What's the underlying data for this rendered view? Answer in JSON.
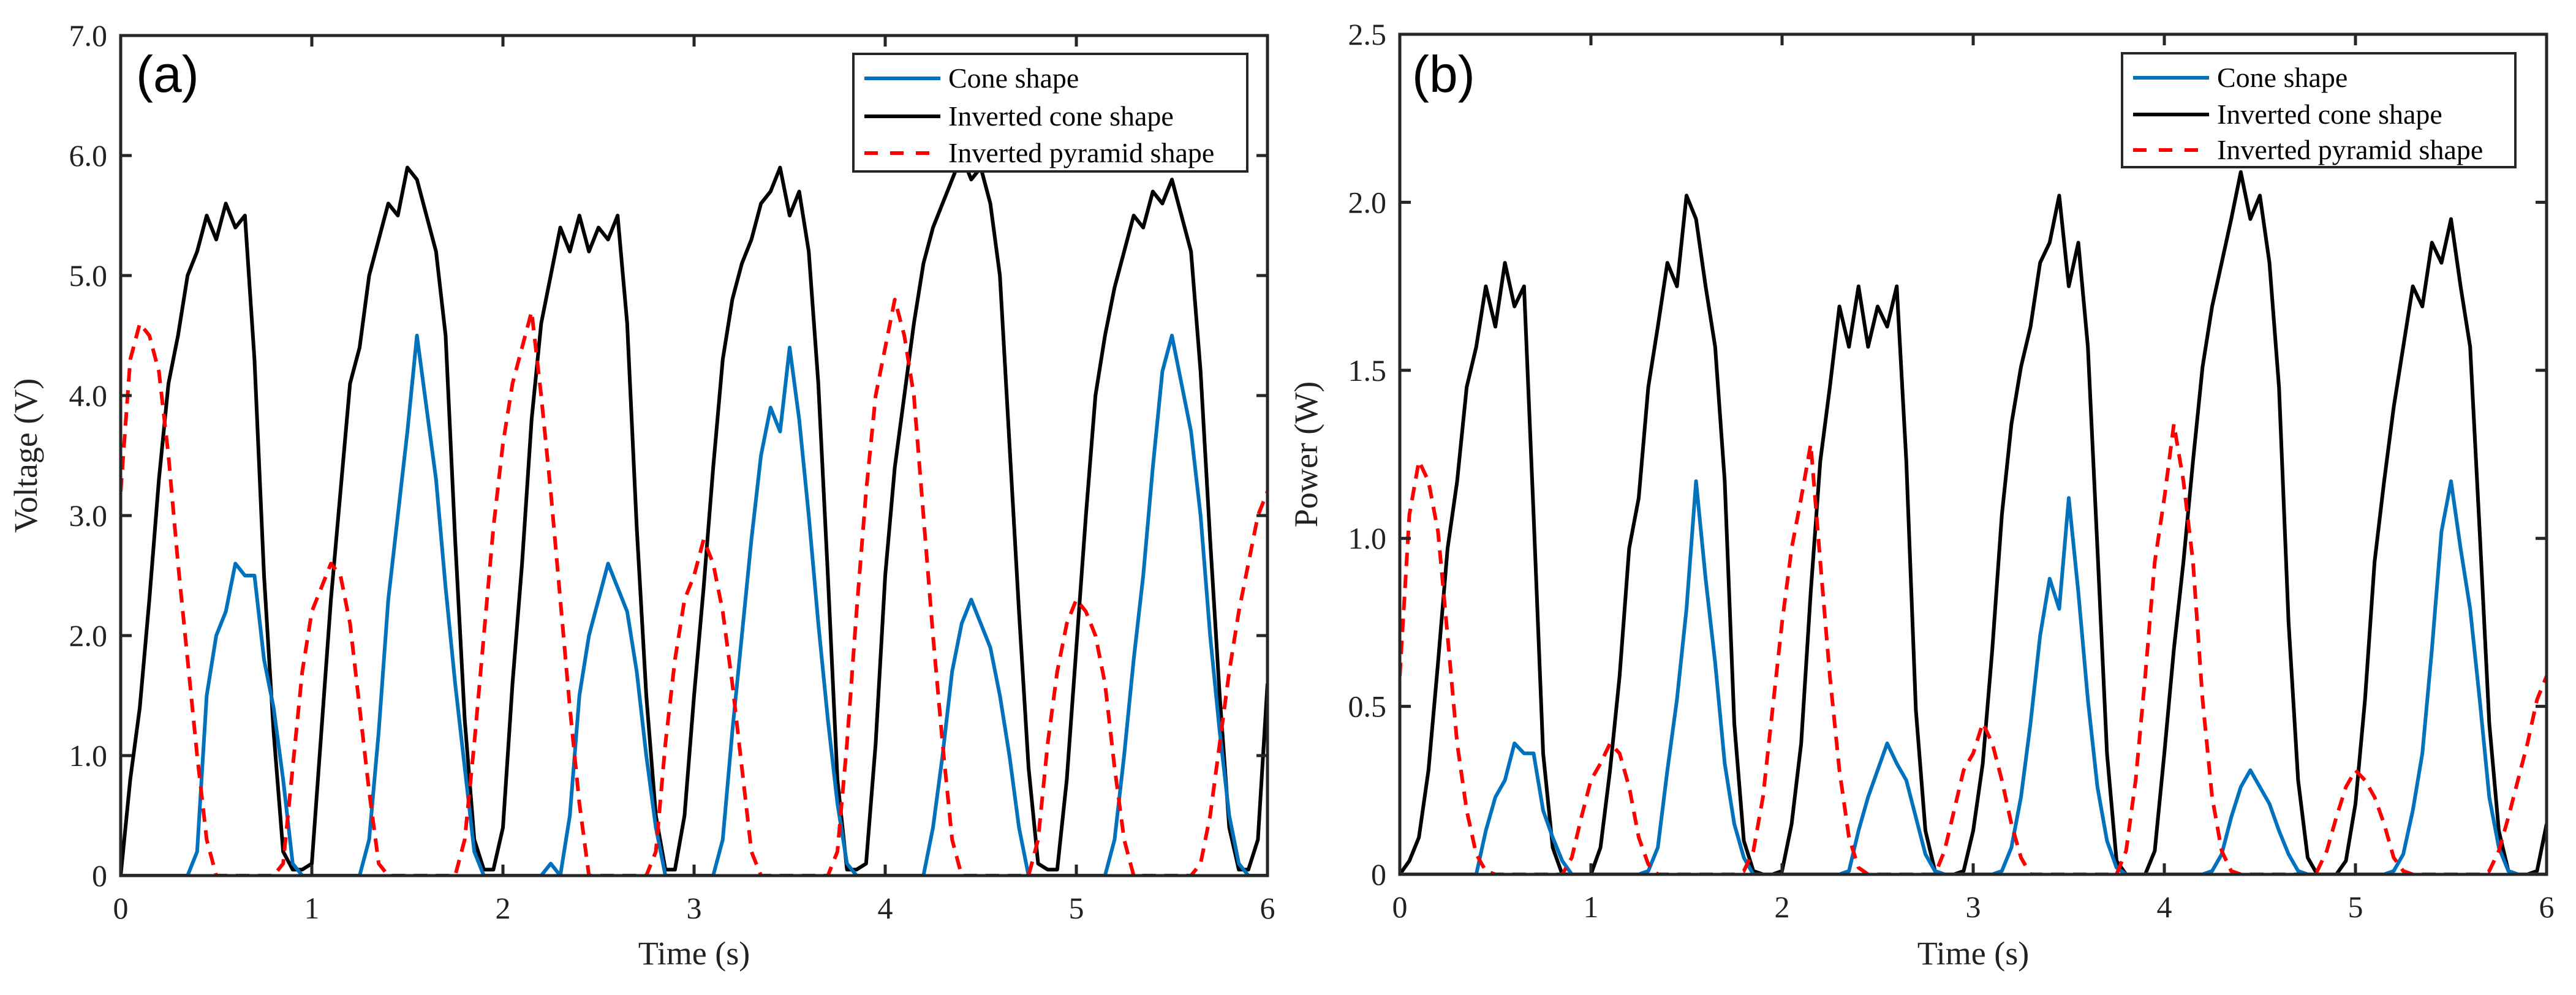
{
  "chart_data": [
    {
      "type": "line",
      "panel_label": "(a)",
      "title": "",
      "xlabel": "Time (s)",
      "ylabel": "Voltage (V)",
      "xlim": [
        0,
        6
      ],
      "ylim": [
        0,
        7
      ],
      "xticks": [
        0,
        1,
        2,
        3,
        4,
        5,
        6
      ],
      "xtick_labels": [
        "0",
        "1",
        "2",
        "3",
        "4",
        "5",
        "6"
      ],
      "yticks": [
        0,
        1,
        2,
        3,
        4,
        5,
        6,
        7
      ],
      "ytick_labels": [
        "0",
        "1.0",
        "2.0",
        "3.0",
        "4.0",
        "5.0",
        "6.0",
        "7.0"
      ],
      "grid": false,
      "legend_position": "top-right",
      "x": [
        0,
        0.05,
        0.1,
        0.15,
        0.2,
        0.25,
        0.3,
        0.35,
        0.4,
        0.45,
        0.5,
        0.55,
        0.6,
        0.65,
        0.7,
        0.75,
        0.8,
        0.85,
        0.9,
        0.95,
        1,
        1.05,
        1.1,
        1.15,
        1.2,
        1.25,
        1.3,
        1.35,
        1.4,
        1.45,
        1.5,
        1.55,
        1.6,
        1.65,
        1.7,
        1.75,
        1.8,
        1.85,
        1.9,
        1.95,
        2,
        2.05,
        2.1,
        2.15,
        2.2,
        2.25,
        2.3,
        2.35,
        2.4,
        2.45,
        2.5,
        2.55,
        2.6,
        2.65,
        2.7,
        2.75,
        2.8,
        2.85,
        2.9,
        2.95,
        3,
        3.05,
        3.1,
        3.15,
        3.2,
        3.25,
        3.3,
        3.35,
        3.4,
        3.45,
        3.5,
        3.55,
        3.6,
        3.65,
        3.7,
        3.75,
        3.8,
        3.85,
        3.9,
        3.95,
        4,
        4.05,
        4.1,
        4.15,
        4.2,
        4.25,
        4.3,
        4.35,
        4.4,
        4.45,
        4.5,
        4.55,
        4.6,
        4.65,
        4.7,
        4.75,
        4.8,
        4.85,
        4.9,
        4.95,
        5,
        5.05,
        5.1,
        5.15,
        5.2,
        5.25,
        5.3,
        5.35,
        5.4,
        5.45,
        5.5,
        5.55,
        5.6,
        5.65,
        5.7,
        5.75,
        5.8,
        5.85,
        5.9,
        5.95,
        6
      ],
      "series": [
        {
          "name": "Cone shape",
          "color": "#0072BD",
          "dash": "solid",
          "values": [
            0,
            0,
            0,
            0,
            0,
            0,
            0,
            0,
            0.2,
            1.5,
            2.0,
            2.2,
            2.6,
            2.5,
            2.5,
            1.8,
            1.4,
            0.8,
            0.1,
            0,
            0,
            0,
            0,
            0,
            0,
            0,
            0.3,
            1.2,
            2.3,
            3.0,
            3.7,
            4.5,
            3.9,
            3.3,
            2.4,
            1.6,
            0.9,
            0.2,
            0,
            0,
            0,
            0,
            0,
            0,
            0,
            0.1,
            0,
            0.5,
            1.5,
            2.0,
            2.3,
            2.6,
            2.4,
            2.2,
            1.7,
            1.0,
            0.4,
            0,
            0,
            0,
            0,
            0,
            0,
            0.3,
            1.2,
            2.0,
            2.8,
            3.5,
            3.9,
            3.7,
            4.4,
            3.8,
            3.0,
            2.1,
            1.3,
            0.6,
            0.1,
            0,
            0,
            0,
            0,
            0,
            0,
            0,
            0,
            0.4,
            1.0,
            1.7,
            2.1,
            2.3,
            2.1,
            1.9,
            1.5,
            1.0,
            0.4,
            0,
            0,
            0,
            0,
            0,
            0,
            0,
            0,
            0,
            0.3,
            1.0,
            1.8,
            2.5,
            3.4,
            4.2,
            4.5,
            4.1,
            3.7,
            3.0,
            2.0,
            1.2,
            0.5,
            0.1,
            0,
            0,
            0
          ]
        },
        {
          "name": "Inverted cone shape",
          "color": "#000000",
          "dash": "solid",
          "values": [
            0,
            0.8,
            1.4,
            2.3,
            3.3,
            4.1,
            4.5,
            5.0,
            5.2,
            5.5,
            5.3,
            5.6,
            5.4,
            5.5,
            4.3,
            2.5,
            1.2,
            0.2,
            0.05,
            0.05,
            0.1,
            1.2,
            2.3,
            3.2,
            4.1,
            4.4,
            5.0,
            5.3,
            5.6,
            5.5,
            5.9,
            5.8,
            5.5,
            5.2,
            4.5,
            2.8,
            1.3,
            0.3,
            0.05,
            0.05,
            0.4,
            1.6,
            2.6,
            3.8,
            4.6,
            5.0,
            5.4,
            5.2,
            5.5,
            5.2,
            5.4,
            5.3,
            5.5,
            4.6,
            2.9,
            1.5,
            0.5,
            0.05,
            0.05,
            0.5,
            1.5,
            2.4,
            3.4,
            4.3,
            4.8,
            5.1,
            5.3,
            5.6,
            5.7,
            5.9,
            5.5,
            5.7,
            5.2,
            4.1,
            2.5,
            0.8,
            0.05,
            0.05,
            0.1,
            1.1,
            2.5,
            3.4,
            4.0,
            4.6,
            5.1,
            5.4,
            5.6,
            5.8,
            6.0,
            5.8,
            5.9,
            5.6,
            5.0,
            3.6,
            2.2,
            0.9,
            0.1,
            0.05,
            0.05,
            0.8,
            1.9,
            3.0,
            4.0,
            4.5,
            4.9,
            5.2,
            5.5,
            5.4,
            5.7,
            5.6,
            5.8,
            5.5,
            5.2,
            4.2,
            2.8,
            1.5,
            0.4,
            0.05,
            0.05,
            0.3,
            1.6
          ]
        },
        {
          "name": "Inverted pyramid shape",
          "color": "#FF0000",
          "dash": "dashed",
          "values": [
            3.2,
            4.3,
            4.6,
            4.5,
            4.2,
            3.5,
            2.6,
            1.8,
            1.0,
            0.3,
            0,
            0,
            0,
            0,
            0,
            0,
            0,
            0.1,
            0.9,
            1.7,
            2.2,
            2.4,
            2.6,
            2.5,
            2.1,
            1.4,
            0.7,
            0.1,
            0,
            0,
            0,
            0,
            0,
            0,
            0,
            0,
            0.3,
            1.1,
            2.0,
            2.9,
            3.6,
            4.1,
            4.4,
            4.7,
            4.0,
            3.2,
            2.3,
            1.4,
            0.6,
            0,
            0,
            0,
            0,
            0,
            0,
            0,
            0.2,
            1.1,
            1.8,
            2.3,
            2.5,
            2.8,
            2.6,
            2.2,
            1.6,
            0.9,
            0.2,
            0,
            0,
            0,
            0,
            0,
            0,
            0,
            0,
            0.2,
            1.1,
            2.2,
            3.2,
            4.0,
            4.4,
            4.8,
            4.5,
            4.0,
            3.0,
            2.0,
            1.1,
            0.3,
            0,
            0,
            0,
            0,
            0,
            0,
            0,
            0,
            0.3,
            1.1,
            1.7,
            2.1,
            2.3,
            2.2,
            2.0,
            1.6,
            0.9,
            0.3,
            0,
            0,
            0,
            0,
            0,
            0,
            0,
            0.1,
            0.5,
            1.1,
            1.7,
            2.2,
            2.6,
            3.0,
            3.2
          ]
        }
      ]
    },
    {
      "type": "line",
      "panel_label": "(b)",
      "title": "",
      "xlabel": "Time (s)",
      "ylabel": "Power (W)",
      "xlim": [
        0,
        6
      ],
      "ylim": [
        0,
        2.5
      ],
      "xticks": [
        0,
        1,
        2,
        3,
        4,
        5,
        6
      ],
      "xtick_labels": [
        "0",
        "1",
        "2",
        "3",
        "4",
        "5",
        "6"
      ],
      "yticks": [
        0,
        0.5,
        1.0,
        1.5,
        2.0,
        2.5
      ],
      "ytick_labels": [
        "0",
        "0.5",
        "1.0",
        "1.5",
        "2.0",
        "2.5"
      ],
      "grid": false,
      "legend_position": "top-right",
      "x": [
        0,
        0.05,
        0.1,
        0.15,
        0.2,
        0.25,
        0.3,
        0.35,
        0.4,
        0.45,
        0.5,
        0.55,
        0.6,
        0.65,
        0.7,
        0.75,
        0.8,
        0.85,
        0.9,
        0.95,
        1,
        1.05,
        1.1,
        1.15,
        1.2,
        1.25,
        1.3,
        1.35,
        1.4,
        1.45,
        1.5,
        1.55,
        1.6,
        1.65,
        1.7,
        1.75,
        1.8,
        1.85,
        1.9,
        1.95,
        2,
        2.05,
        2.1,
        2.15,
        2.2,
        2.25,
        2.3,
        2.35,
        2.4,
        2.45,
        2.5,
        2.55,
        2.6,
        2.65,
        2.7,
        2.75,
        2.8,
        2.85,
        2.9,
        2.95,
        3,
        3.05,
        3.1,
        3.15,
        3.2,
        3.25,
        3.3,
        3.35,
        3.4,
        3.45,
        3.5,
        3.55,
        3.6,
        3.65,
        3.7,
        3.75,
        3.8,
        3.85,
        3.9,
        3.95,
        4,
        4.05,
        4.1,
        4.15,
        4.2,
        4.25,
        4.3,
        4.35,
        4.4,
        4.45,
        4.5,
        4.55,
        4.6,
        4.65,
        4.7,
        4.75,
        4.8,
        4.85,
        4.9,
        4.95,
        5,
        5.05,
        5.1,
        5.15,
        5.2,
        5.25,
        5.3,
        5.35,
        5.4,
        5.45,
        5.5,
        5.55,
        5.6,
        5.65,
        5.7,
        5.75,
        5.8,
        5.85,
        5.9,
        5.95,
        6
      ],
      "series": [
        {
          "name": "Cone shape",
          "color": "#0072BD",
          "dash": "solid",
          "values": [
            0,
            0,
            0,
            0,
            0,
            0,
            0,
            0,
            0,
            0.13,
            0.23,
            0.28,
            0.39,
            0.36,
            0.36,
            0.19,
            0.11,
            0.04,
            0,
            0,
            0,
            0,
            0,
            0,
            0,
            0,
            0.01,
            0.08,
            0.31,
            0.52,
            0.79,
            1.17,
            0.88,
            0.63,
            0.33,
            0.15,
            0.05,
            0,
            0,
            0,
            0,
            0,
            0,
            0,
            0,
            0,
            0,
            0.01,
            0.13,
            0.23,
            0.31,
            0.39,
            0.33,
            0.28,
            0.17,
            0.06,
            0.01,
            0,
            0,
            0,
            0,
            0,
            0,
            0.01,
            0.08,
            0.23,
            0.45,
            0.71,
            0.88,
            0.79,
            1.12,
            0.84,
            0.52,
            0.26,
            0.1,
            0.02,
            0,
            0,
            0,
            0,
            0,
            0,
            0,
            0,
            0,
            0.01,
            0.06,
            0.17,
            0.26,
            0.31,
            0.26,
            0.21,
            0.13,
            0.06,
            0.01,
            0,
            0,
            0,
            0,
            0,
            0,
            0,
            0,
            0,
            0.01,
            0.06,
            0.19,
            0.36,
            0.67,
            1.02,
            1.17,
            0.97,
            0.79,
            0.52,
            0.23,
            0.08,
            0.01,
            0,
            0,
            0,
            0
          ]
        },
        {
          "name": "Inverted cone shape",
          "color": "#000000",
          "dash": "solid",
          "values": [
            0,
            0.04,
            0.11,
            0.31,
            0.63,
            0.97,
            1.17,
            1.45,
            1.57,
            1.75,
            1.63,
            1.82,
            1.69,
            1.75,
            1.07,
            0.36,
            0.08,
            0,
            0,
            0,
            0,
            0.08,
            0.31,
            0.59,
            0.97,
            1.12,
            1.45,
            1.63,
            1.82,
            1.75,
            2.02,
            1.95,
            1.75,
            1.57,
            1.17,
            0.45,
            0.1,
            0.01,
            0,
            0,
            0.01,
            0.15,
            0.39,
            0.84,
            1.23,
            1.45,
            1.69,
            1.57,
            1.75,
            1.57,
            1.69,
            1.63,
            1.75,
            1.23,
            0.49,
            0.13,
            0.01,
            0,
            0,
            0.01,
            0.13,
            0.33,
            0.67,
            1.07,
            1.34,
            1.51,
            1.63,
            1.82,
            1.88,
            2.02,
            1.75,
            1.88,
            1.57,
            0.97,
            0.36,
            0.04,
            0,
            0,
            0,
            0.07,
            0.36,
            0.67,
            0.93,
            1.23,
            1.51,
            1.69,
            1.82,
            1.95,
            2.09,
            1.95,
            2.02,
            1.82,
            1.45,
            0.75,
            0.28,
            0.05,
            0,
            0,
            0,
            0.04,
            0.21,
            0.52,
            0.93,
            1.17,
            1.39,
            1.57,
            1.75,
            1.69,
            1.88,
            1.82,
            1.95,
            1.75,
            1.57,
            1.02,
            0.45,
            0.13,
            0.01,
            0,
            0,
            0.01,
            0.15
          ]
        },
        {
          "name": "Inverted pyramid shape",
          "color": "#FF0000",
          "dash": "dashed",
          "values": [
            0.59,
            1.07,
            1.23,
            1.17,
            1.02,
            0.71,
            0.39,
            0.19,
            0.06,
            0.01,
            0,
            0,
            0,
            0,
            0,
            0,
            0,
            0,
            0.05,
            0.17,
            0.28,
            0.33,
            0.39,
            0.36,
            0.26,
            0.11,
            0.03,
            0,
            0,
            0,
            0,
            0,
            0,
            0,
            0,
            0,
            0.01,
            0.07,
            0.23,
            0.49,
            0.75,
            0.97,
            1.12,
            1.28,
            0.93,
            0.59,
            0.31,
            0.11,
            0.02,
            0,
            0,
            0,
            0,
            0,
            0,
            0,
            0,
            0.07,
            0.19,
            0.31,
            0.36,
            0.45,
            0.39,
            0.28,
            0.15,
            0.05,
            0,
            0,
            0,
            0,
            0,
            0,
            0,
            0,
            0,
            0,
            0.07,
            0.28,
            0.59,
            0.93,
            1.12,
            1.34,
            1.17,
            0.93,
            0.52,
            0.23,
            0.07,
            0.01,
            0,
            0,
            0,
            0,
            0,
            0,
            0,
            0,
            0.01,
            0.07,
            0.17,
            0.26,
            0.31,
            0.28,
            0.23,
            0.15,
            0.05,
            0.01,
            0,
            0,
            0,
            0,
            0,
            0,
            0,
            0,
            0.01,
            0.07,
            0.17,
            0.28,
            0.39,
            0.52,
            0.59
          ]
        }
      ]
    }
  ]
}
